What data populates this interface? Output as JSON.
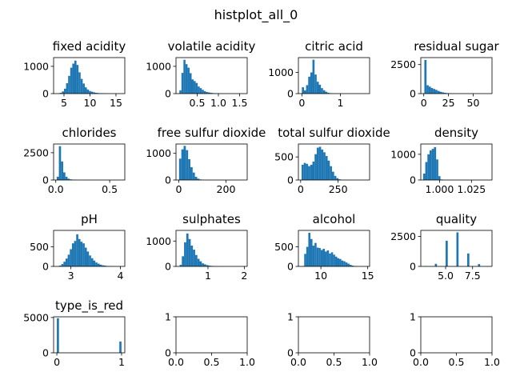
{
  "figure_title": "histplot_all_0",
  "bar_color": "#1f77b4",
  "chart_data": [
    {
      "type": "bar",
      "title": "fixed acidity",
      "xlim": [
        3.0,
        16.7
      ],
      "ylim": [
        0,
        1320
      ],
      "xticks": [
        {
          "v": 5,
          "label": "5"
        },
        {
          "v": 10,
          "label": "10"
        },
        {
          "v": 15,
          "label": "15"
        }
      ],
      "yticks": [
        {
          "v": 0,
          "label": "0"
        },
        {
          "v": 1000,
          "label": "1000"
        }
      ],
      "bin_start": 3.8,
      "bin_width": 0.4,
      "values": [
        10,
        30,
        80,
        180,
        380,
        650,
        950,
        1100,
        1210,
        1050,
        780,
        540,
        370,
        230,
        150,
        95,
        70,
        45,
        30,
        20,
        15,
        10,
        6,
        4,
        3,
        2,
        1,
        1,
        1,
        1,
        0,
        1
      ]
    },
    {
      "type": "bar",
      "title": "volatile acidity",
      "xlim": [
        0.0,
        1.68
      ],
      "ylim": [
        0,
        1320
      ],
      "xticks": [
        {
          "v": 0.5,
          "label": "0.5"
        },
        {
          "v": 1.0,
          "label": "1.0"
        },
        {
          "v": 1.5,
          "label": "1.5"
        }
      ],
      "yticks": [
        {
          "v": 0,
          "label": "0"
        },
        {
          "v": 1000,
          "label": "1000"
        }
      ],
      "bin_start": 0.08,
      "bin_width": 0.048,
      "values": [
        120,
        760,
        1240,
        1080,
        950,
        750,
        520,
        460,
        390,
        260,
        200,
        140,
        90,
        60,
        45,
        30,
        18,
        12,
        8,
        5,
        4,
        3,
        2,
        1,
        1,
        1,
        1,
        1,
        1,
        1
      ]
    },
    {
      "type": "bar",
      "title": "citric acid",
      "xlim": [
        -0.09,
        1.76
      ],
      "ylim": [
        0,
        1700
      ],
      "xticks": [
        {
          "v": 0,
          "label": "0"
        },
        {
          "v": 1,
          "label": "1"
        }
      ],
      "yticks": [
        {
          "v": 0,
          "label": "0"
        },
        {
          "v": 1000,
          "label": "1000"
        }
      ],
      "bin_start": 0.0,
      "bin_width": 0.055,
      "values": [
        300,
        150,
        400,
        800,
        1000,
        1600,
        900,
        560,
        420,
        260,
        160,
        90,
        40,
        20,
        10,
        6,
        3,
        2,
        1,
        1,
        1,
        1,
        0,
        0,
        0,
        0,
        0,
        0,
        0,
        0,
        1
      ]
    },
    {
      "type": "bar",
      "title": "residual sugar",
      "xlim": [
        -3.0,
        69.0
      ],
      "ylim": [
        0,
        3100
      ],
      "xticks": [
        {
          "v": 0,
          "label": "0"
        },
        {
          "v": 25,
          "label": "25"
        },
        {
          "v": 50,
          "label": "50"
        }
      ],
      "yticks": [
        {
          "v": 0,
          "label": "0"
        },
        {
          "v": 2500,
          "label": "2500"
        }
      ],
      "bin_start": 0.6,
      "bin_width": 2.2,
      "values": [
        2900,
        720,
        600,
        480,
        400,
        320,
        230,
        160,
        110,
        70,
        40,
        20,
        8,
        4,
        2,
        1,
        1,
        1,
        0,
        0,
        0,
        0,
        0,
        0,
        0,
        0,
        0,
        0,
        0,
        1
      ]
    },
    {
      "type": "bar",
      "title": "chlorides",
      "xlim": [
        -0.02,
        0.64
      ],
      "ylim": [
        0,
        3300
      ],
      "xticks": [
        {
          "v": 0.0,
          "label": "0.0"
        },
        {
          "v": 0.5,
          "label": "0.5"
        }
      ],
      "yticks": [
        {
          "v": 0,
          "label": "0"
        },
        {
          "v": 2500,
          "label": "2500"
        }
      ],
      "bin_start": 0.009,
      "bin_width": 0.02,
      "values": [
        300,
        3100,
        1700,
        700,
        300,
        120,
        60,
        30,
        20,
        12,
        8,
        6,
        4,
        3,
        2,
        2,
        1,
        1,
        1,
        1,
        1,
        1,
        0,
        1,
        0,
        0,
        0,
        0,
        0,
        1
      ]
    },
    {
      "type": "bar",
      "title": "free sulfur dioxide",
      "xlim": [
        -12.0,
        290.0
      ],
      "ylim": [
        0,
        1350
      ],
      "xticks": [
        {
          "v": 0,
          "label": "0"
        },
        {
          "v": 200,
          "label": "200"
        }
      ],
      "yticks": [
        {
          "v": 0,
          "label": "0"
        },
        {
          "v": 1000,
          "label": "1000"
        }
      ],
      "bin_start": 1.0,
      "bin_width": 9.6,
      "values": [
        800,
        1150,
        1280,
        1120,
        780,
        480,
        280,
        120,
        50,
        20,
        8,
        3,
        1,
        1,
        0,
        0,
        0,
        0,
        0,
        0,
        0,
        0,
        0,
        0,
        0,
        0,
        0,
        0,
        1
      ]
    },
    {
      "type": "bar",
      "title": "total sulfur dioxide",
      "xlim": [
        -15.0,
        460.0
      ],
      "ylim": [
        0,
        780
      ],
      "xticks": [
        {
          "v": 0,
          "label": "0"
        },
        {
          "v": 250,
          "label": "250"
        }
      ],
      "yticks": [
        {
          "v": 0,
          "label": "0"
        },
        {
          "v": 500,
          "label": "500"
        }
      ],
      "bin_start": 6.0,
      "bin_width": 14.5,
      "values": [
        330,
        370,
        350,
        300,
        330,
        400,
        560,
        700,
        720,
        660,
        600,
        520,
        420,
        300,
        180,
        90,
        40,
        15,
        5,
        2,
        1,
        1,
        0,
        0,
        0,
        0,
        0,
        0,
        0,
        1
      ]
    },
    {
      "type": "bar",
      "title": "density",
      "xlim": [
        0.9853,
        1.0411
      ],
      "ylim": [
        0,
        1400
      ],
      "xticks": [
        {
          "v": 1.0,
          "label": "1.000"
        },
        {
          "v": 1.025,
          "label": "1.025"
        }
      ],
      "yticks": [
        {
          "v": 0,
          "label": "0"
        },
        {
          "v": 1000,
          "label": "1000"
        }
      ],
      "bin_start": 0.9871,
      "bin_width": 0.0017,
      "values": [
        250,
        700,
        1000,
        1150,
        1210,
        1280,
        800,
        150,
        20,
        5,
        2,
        1,
        1,
        0,
        0,
        0,
        0,
        0,
        0,
        0,
        0,
        0,
        0,
        0,
        0,
        0,
        0,
        0,
        0,
        1
      ]
    },
    {
      "type": "bar",
      "title": "pH",
      "xlim": [
        2.65,
        4.09
      ],
      "ylim": [
        0,
        920
      ],
      "xticks": [
        {
          "v": 3,
          "label": "3"
        },
        {
          "v": 4,
          "label": "4"
        }
      ],
      "yticks": [
        {
          "v": 0,
          "label": "0"
        },
        {
          "v": 500,
          "label": "500"
        }
      ],
      "bin_start": 2.72,
      "bin_width": 0.043,
      "values": [
        5,
        20,
        60,
        120,
        200,
        300,
        440,
        590,
        650,
        820,
        700,
        630,
        590,
        480,
        380,
        280,
        210,
        150,
        100,
        70,
        45,
        30,
        20,
        12,
        8,
        5,
        3,
        2,
        1,
        1,
        1
      ]
    },
    {
      "type": "bar",
      "title": "sulphates",
      "xlim": [
        0.12,
        2.08
      ],
      "ylim": [
        0,
        1420
      ],
      "xticks": [
        {
          "v": 1,
          "label": "1"
        },
        {
          "v": 2,
          "label": "2"
        }
      ],
      "yticks": [
        {
          "v": 0,
          "label": "0"
        },
        {
          "v": 1000,
          "label": "1000"
        }
      ],
      "bin_start": 0.22,
      "bin_width": 0.061,
      "values": [
        60,
        400,
        950,
        1300,
        1080,
        820,
        660,
        450,
        300,
        200,
        120,
        80,
        50,
        30,
        20,
        12,
        8,
        6,
        4,
        3,
        2,
        2,
        1,
        1,
        1,
        1,
        0,
        0,
        0,
        1
      ]
    },
    {
      "type": "bar",
      "title": "alcohol",
      "xlim": [
        7.6,
        15.2
      ],
      "ylim": [
        0,
        920
      ],
      "xticks": [
        {
          "v": 10,
          "label": "10"
        },
        {
          "v": 15,
          "label": "15"
        }
      ],
      "yticks": [
        {
          "v": 0,
          "label": "0"
        },
        {
          "v": 500,
          "label": "500"
        }
      ],
      "bin_start": 8.0,
      "bin_width": 0.22,
      "values": [
        10,
        320,
        500,
        860,
        700,
        530,
        600,
        480,
        470,
        420,
        450,
        380,
        410,
        330,
        360,
        300,
        250,
        210,
        190,
        150,
        130,
        100,
        70,
        40,
        20,
        10,
        5,
        2,
        1,
        1
      ]
    },
    {
      "type": "bar",
      "title": "quality",
      "xlim": [
        2.7,
        9.3
      ],
      "ylim": [
        0,
        3000
      ],
      "xticks": [
        {
          "v": 5.0,
          "label": "5.0"
        },
        {
          "v": 7.5,
          "label": "7.5"
        }
      ],
      "yticks": [
        {
          "v": 0,
          "label": "0"
        },
        {
          "v": 2500,
          "label": "2500"
        }
      ],
      "bin_start": 3.0,
      "bin_width": 0.2,
      "values": [
        30,
        0,
        0,
        0,
        0,
        216,
        0,
        0,
        0,
        0,
        2138,
        0,
        0,
        0,
        0,
        2836,
        0,
        0,
        0,
        0,
        1079,
        0,
        0,
        0,
        0,
        193,
        0,
        0,
        0,
        5
      ]
    },
    {
      "type": "bar",
      "title": "type_is_red",
      "xlim": [
        -0.05,
        1.05
      ],
      "ylim": [
        0,
        5100
      ],
      "xticks": [
        {
          "v": 0,
          "label": "0"
        },
        {
          "v": 1,
          "label": "1"
        }
      ],
      "yticks": [
        {
          "v": 0,
          "label": "0"
        },
        {
          "v": 5000,
          "label": "5000"
        }
      ],
      "bin_start": 0.0,
      "bin_width": 0.0333,
      "values": [
        4898,
        0,
        0,
        0,
        0,
        0,
        0,
        0,
        0,
        0,
        0,
        0,
        0,
        0,
        0,
        0,
        0,
        0,
        0,
        0,
        0,
        0,
        0,
        0,
        0,
        0,
        0,
        0,
        0,
        1599
      ]
    },
    {
      "type": "bar",
      "title": "",
      "xlim": [
        0,
        1
      ],
      "ylim": [
        0,
        1
      ],
      "xticks": [
        {
          "v": 0,
          "label": "0.0"
        },
        {
          "v": 0.5,
          "label": "0.5"
        },
        {
          "v": 1,
          "label": "1.0"
        }
      ],
      "yticks": [
        {
          "v": 0,
          "label": "0"
        },
        {
          "v": 1,
          "label": "1"
        }
      ],
      "bin_start": 0,
      "bin_width": 0,
      "values": []
    },
    {
      "type": "bar",
      "title": "",
      "xlim": [
        0,
        1
      ],
      "ylim": [
        0,
        1
      ],
      "xticks": [
        {
          "v": 0,
          "label": "0.0"
        },
        {
          "v": 0.5,
          "label": "0.5"
        },
        {
          "v": 1,
          "label": "1.0"
        }
      ],
      "yticks": [
        {
          "v": 0,
          "label": "0"
        },
        {
          "v": 1,
          "label": "1"
        }
      ],
      "bin_start": 0,
      "bin_width": 0,
      "values": []
    },
    {
      "type": "bar",
      "title": "",
      "xlim": [
        0,
        1
      ],
      "ylim": [
        0,
        1
      ],
      "xticks": [
        {
          "v": 0,
          "label": "0.0"
        },
        {
          "v": 0.5,
          "label": "0.5"
        },
        {
          "v": 1,
          "label": "1.0"
        }
      ],
      "yticks": [
        {
          "v": 0,
          "label": "0"
        },
        {
          "v": 1,
          "label": "1"
        }
      ],
      "bin_start": 0,
      "bin_width": 0,
      "values": []
    }
  ]
}
